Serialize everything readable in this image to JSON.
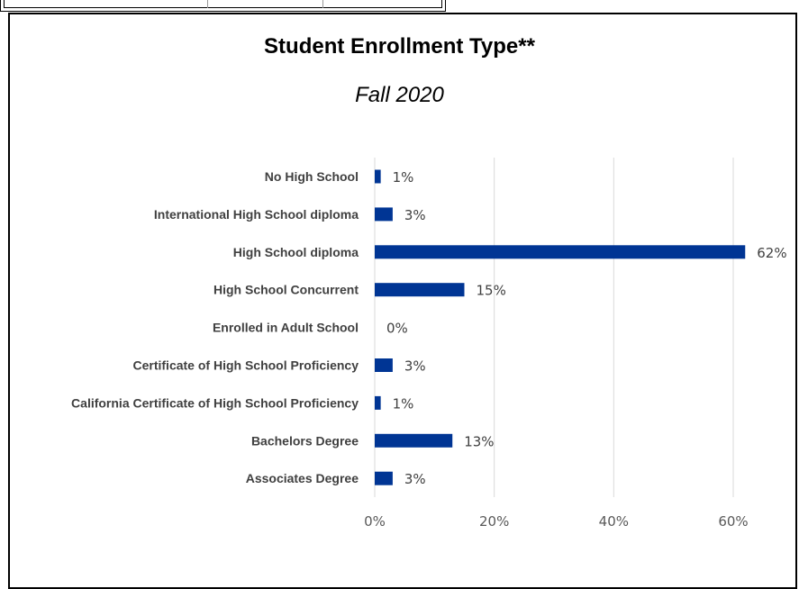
{
  "chart_data": {
    "type": "bar",
    "orientation": "horizontal",
    "title": "Student Enrollment Type**",
    "subtitle": "Fall 2020",
    "categories": [
      "No High School",
      "International High School diploma",
      "High School diploma",
      "High School Concurrent",
      "Enrolled in Adult School",
      "Certificate of High School Proficiency",
      "California Certificate of High School Proficiency",
      "Bachelors Degree",
      "Associates Degree"
    ],
    "values": [
      1,
      3,
      62,
      15,
      0,
      3,
      1,
      13,
      3
    ],
    "data_labels": [
      "1%",
      "3%",
      "62%",
      "15%",
      "0%",
      "3%",
      "1%",
      "13%",
      "3%"
    ],
    "xlim": [
      0,
      60
    ],
    "x_ticks": [
      0,
      20,
      40,
      60
    ],
    "x_tick_labels": [
      "0%",
      "20%",
      "40%",
      "60%"
    ],
    "grid": "vertical",
    "bar_color": "#003594",
    "gridline_color": "#d9d9d9",
    "legend": "none"
  }
}
